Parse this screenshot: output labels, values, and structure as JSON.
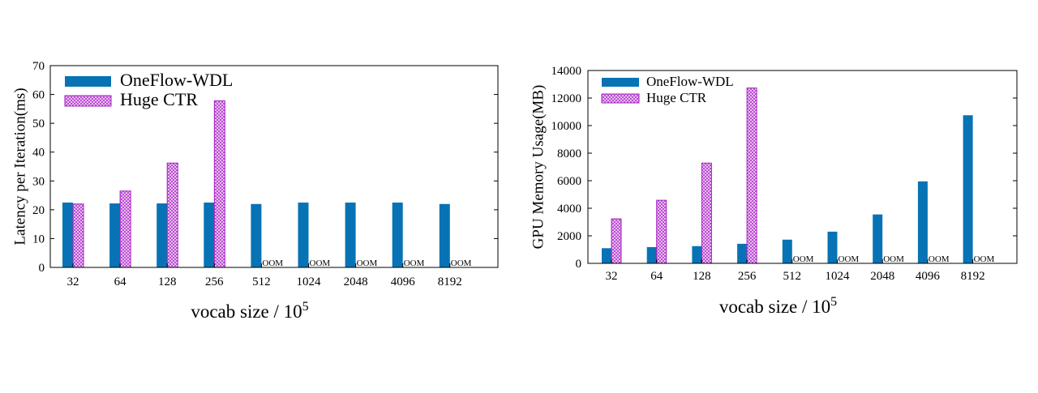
{
  "colors": {
    "oneflow": "#0773b5",
    "hugectr_stroke": "#a61fc4",
    "hugectr_fill": "#f2d6f7",
    "axis": "#000000"
  },
  "oom_label": "OOM",
  "chart_data": [
    {
      "type": "bar",
      "title": "",
      "xlabel": "vocab size / 10",
      "xlabel_sup": "5",
      "ylabel": "Latency per Iteration(ms)",
      "ylim": [
        0,
        70
      ],
      "yticks": [
        0,
        10,
        20,
        30,
        40,
        50,
        60,
        70
      ],
      "grid": false,
      "legend_position": "top-left",
      "categories": [
        "32",
        "64",
        "128",
        "256",
        "512",
        "1024",
        "2048",
        "4096",
        "8192"
      ],
      "series": [
        {
          "name": "OneFlow-WDL",
          "values": [
            22.5,
            22.2,
            22.2,
            22.5,
            22.0,
            22.5,
            22.5,
            22.5,
            22.0
          ]
        },
        {
          "name": "Huge CTR",
          "values": [
            22.0,
            26.5,
            36.2,
            57.8,
            null,
            null,
            null,
            null,
            null
          ]
        }
      ],
      "annotations": [
        "OOM",
        "OOM",
        "OOM",
        "OOM",
        "OOM"
      ]
    },
    {
      "type": "bar",
      "title": "",
      "xlabel": "vocab size / 10",
      "xlabel_sup": "5",
      "ylabel": "GPU Memory Usage(MB)",
      "ylim": [
        0,
        14000
      ],
      "yticks": [
        0,
        2000,
        4000,
        6000,
        8000,
        10000,
        12000,
        14000
      ],
      "grid": false,
      "legend_position": "top-left",
      "categories": [
        "32",
        "64",
        "128",
        "256",
        "512",
        "1024",
        "2048",
        "4096",
        "8192"
      ],
      "series": [
        {
          "name": "OneFlow-WDL",
          "values": [
            1100,
            1180,
            1250,
            1420,
            1720,
            2300,
            3550,
            5950,
            10750
          ]
        },
        {
          "name": "Huge CTR",
          "values": [
            3230,
            4580,
            7280,
            12730,
            null,
            null,
            null,
            null,
            null
          ]
        }
      ],
      "annotations": [
        "OOM",
        "OOM",
        "OOM",
        "OOM",
        "OOM"
      ]
    }
  ]
}
